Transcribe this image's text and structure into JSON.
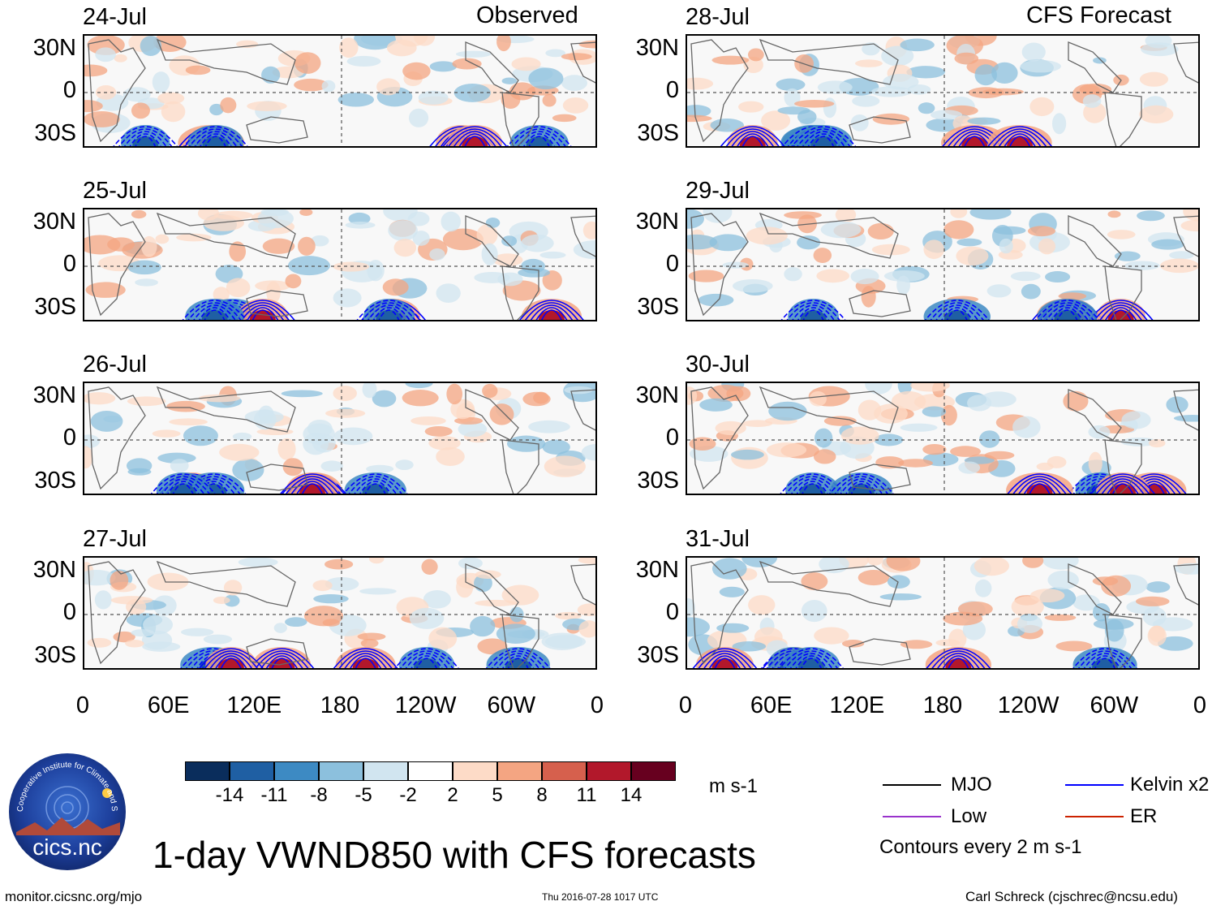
{
  "chart_data": {
    "type": "heatmap",
    "title": "1-day VWND850 with CFS forecasts",
    "variable": "850 hPa meridional wind anomaly",
    "units": "m s-1",
    "contour_interval_label": "Contours every 2 m s-1",
    "column_headers": {
      "left": "Observed",
      "right": "CFS Forecast"
    },
    "lat_ticks": [
      "30N",
      "0",
      "30S"
    ],
    "lon_ticks": [
      "0",
      "60E",
      "120E",
      "180",
      "120W",
      "60W",
      "0"
    ],
    "xlim": [
      0,
      360
    ],
    "ylim": [
      -40,
      40
    ],
    "panels": [
      {
        "date": "24-Jul",
        "column": "Observed"
      },
      {
        "date": "25-Jul",
        "column": "Observed"
      },
      {
        "date": "26-Jul",
        "column": "Observed"
      },
      {
        "date": "27-Jul",
        "column": "Observed"
      },
      {
        "date": "28-Jul",
        "column": "CFS Forecast"
      },
      {
        "date": "29-Jul",
        "column": "CFS Forecast"
      },
      {
        "date": "30-Jul",
        "column": "CFS Forecast"
      },
      {
        "date": "31-Jul",
        "column": "CFS Forecast"
      }
    ],
    "colorbar": {
      "labels": [
        "-14",
        "-11",
        "-8",
        "-5",
        "-2",
        "2",
        "5",
        "8",
        "11",
        "14"
      ],
      "colors": [
        "#0a2d5c",
        "#1f5fa3",
        "#3d8ac3",
        "#8cc0dd",
        "#d1e5f0",
        "#ffffff",
        "#fddbc7",
        "#f4a582",
        "#d6604d",
        "#b2182b",
        "#67001f"
      ],
      "units": "m s-1"
    },
    "legend": [
      {
        "label": "MJO",
        "color": "#000000"
      },
      {
        "label": "Kelvin x2",
        "color": "#0000ff"
      },
      {
        "label": "Low",
        "color": "#9933cc"
      },
      {
        "label": "ER",
        "color": "#cc2200"
      }
    ]
  },
  "logo_text": "cics.nc",
  "logo_ring_text": "Cooperative Institute for Climate and Satellites",
  "footer": {
    "left": "monitor.cicsnc.org/mjo",
    "center": "Thu 2016-07-28 1017 UTC",
    "right": "Carl Schreck (cjschrec@ncsu.edu)"
  },
  "colors": {
    "land_outline": "#666666",
    "contour_blue": "#0000ff",
    "grid_dash": "#555555"
  }
}
